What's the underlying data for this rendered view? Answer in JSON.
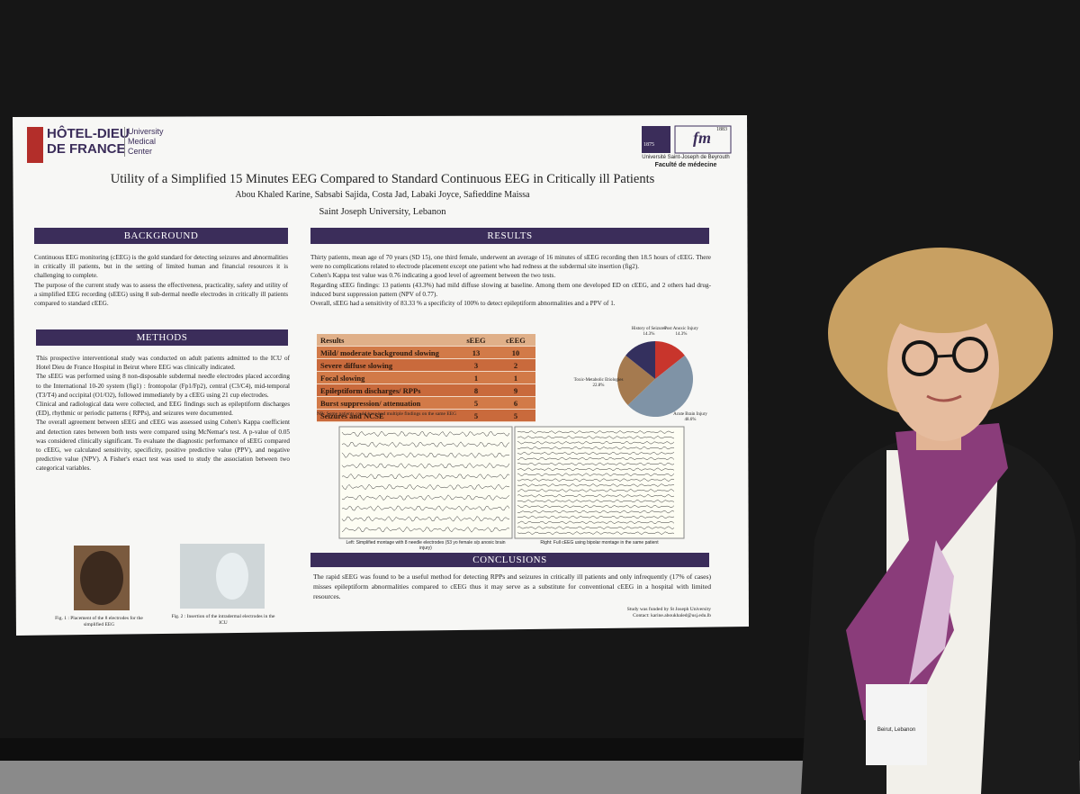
{
  "poster": {
    "logo_left": {
      "name_lines": [
        "HÔTEL-DIEU",
        "DE FRANCE"
      ],
      "sub_lines": [
        "University",
        "Medical",
        "Center"
      ]
    },
    "logo_right": {
      "years": [
        "1875",
        "1883"
      ],
      "mark": "fm",
      "university": "Université Saint-Joseph de Beyrouth",
      "faculty": "Faculté de médecine"
    },
    "title": "Utility of a Simplified 15 Minutes EEG Compared to Standard Continuous EEG in Critically ill Patients",
    "authors": "Abou Khaled Karine, Sabsabi Sajida, Costa Jad, Labaki Joyce, Safieddine Maissa",
    "affiliation": "Saint Joseph University, Lebanon",
    "background": {
      "heading": "BACKGROUND",
      "paragraphs": [
        "Continuous EEG monitoring (cEEG) is the gold standard for detecting seizures and abnormalities in critically ill patients, but in the setting of limited human and financial resources it is challenging to complete.",
        "The purpose of the current study was to assess the effectiveness, practicality, safety and utility of a simplified EEG recording (sEEG) using 8 sub-dermal needle electrodes in critically ill patients compared to standard cEEG."
      ]
    },
    "methods": {
      "heading": "METHODS",
      "paragraphs": [
        "This prospective interventional study was conducted on adult patients admitted to the ICU of Hotel Dieu de France Hospital in Beirut where EEG was clinically indicated.",
        "The sEEG was performed using 8 non-disposable subdermal needle electrodes placed according to the International 10-20 system (fig1) : frontopolar (Fp1/Fp2), central (C3/C4), mid-temporal (T3/T4) and occipital (O1/O2), followed immediately by a cEEG using 21 cup electrodes.",
        "Clinical and radiological data were collected, and EEG findings such as epileptiform discharges (ED), rhythmic or periodic patterns ( RPPs), and seizures were documented.",
        "The overall agreement between sEEG and cEEG was assessed using Cohen's Kappa coefficient and detection rates between both tests were compared using McNemar's test. A p-value of 0.05 was considered clinically significant. To evaluate the diagnostic performance of sEEG compared to cEEG, we calculated sensitivity, specificity, positive predictive value (PPV), and negative predictive value (NPV). A Fisher's exact test was used to study the association between two categorical variables."
      ]
    },
    "figures": [
      "Fig. 1 : Placement of the 8 electrodes for the simplified EEG",
      "Fig. 2 : Insertion of the intradermal electrodes in the ICU"
    ],
    "results": {
      "heading": "RESULTS",
      "paragraphs": [
        "Thirty patients, mean age of 70 years (SD 15), one third female, underwent an average of 16 minutes of sEEG recording then 18.5 hours of cEEG. There were no complications related to electrode placement except one patient who had redness at the subdermal site insertion (fig2).",
        "Cohen's Kappa test value was 0.76 indicating a good level of agreement between the two tests.",
        "Regarding sEEG findings: 13 patients (43.3%) had mild diffuse slowing at baseline. Among them one developed ED on cEEG, and 2 others had drug-induced burst suppression pattern (NPV of 0.77).",
        "Overall, sEEG had a sensitivity of 83.33 % a specificity of 100% to detect epileptiform abnormalities and a PPV of 1."
      ]
    },
    "table": {
      "header": [
        "Results",
        "sEEG",
        "cEEG"
      ],
      "rows": [
        [
          "Mild/ moderate background slowing",
          13,
          10
        ],
        [
          "Severe diffuse slowing",
          3,
          2
        ],
        [
          "Focal slowing",
          1,
          1
        ],
        [
          "Epileptiform discharges/ RPPs",
          8,
          9
        ],
        [
          "Burst suppression/ attenuation",
          5,
          6
        ],
        [
          "Seizures and NCSE",
          5,
          5
        ]
      ],
      "note": "NB: Some patients could have had multiple findings on the same EEG"
    },
    "pie": {
      "type": "pie",
      "labels": [
        "Post Anoxic Injury",
        "Acute Brain Injury",
        "Toxic-Metabolic Etiologies",
        "History of Seizures"
      ],
      "values": [
        14.3,
        48.6,
        22.8,
        14.3
      ],
      "value_labels": [
        "14.3%",
        "48.6%",
        "22.8%",
        "14.3%"
      ],
      "colors": [
        "#c8352c",
        "#7f93a6",
        "#a57a4f",
        "#34305e"
      ]
    },
    "eeg_captions": [
      "Left: Simplified montage with 8 needle electrodes (53 yo female s/p anoxic brain injury)",
      "Right: Full cEEG using bipolar montage in the same patient"
    ],
    "conclusions": {
      "heading": "CONCLUSIONS",
      "text": "The rapid sEEG was found to be a useful method for detecting RPPs and seizures in critically ill patients and only infrequently (17% of cases) misses epileptiform abnormalities compared to cEEG thus it may serve as a substitute for conventional cEEG in a hospital with limited resources."
    },
    "funding": [
      "Study was funded by St Joseph University",
      "Contact: karine.aboukhaled@usj.edu.lb"
    ]
  },
  "badge": {
    "line": "Beirut, Lebanon"
  }
}
